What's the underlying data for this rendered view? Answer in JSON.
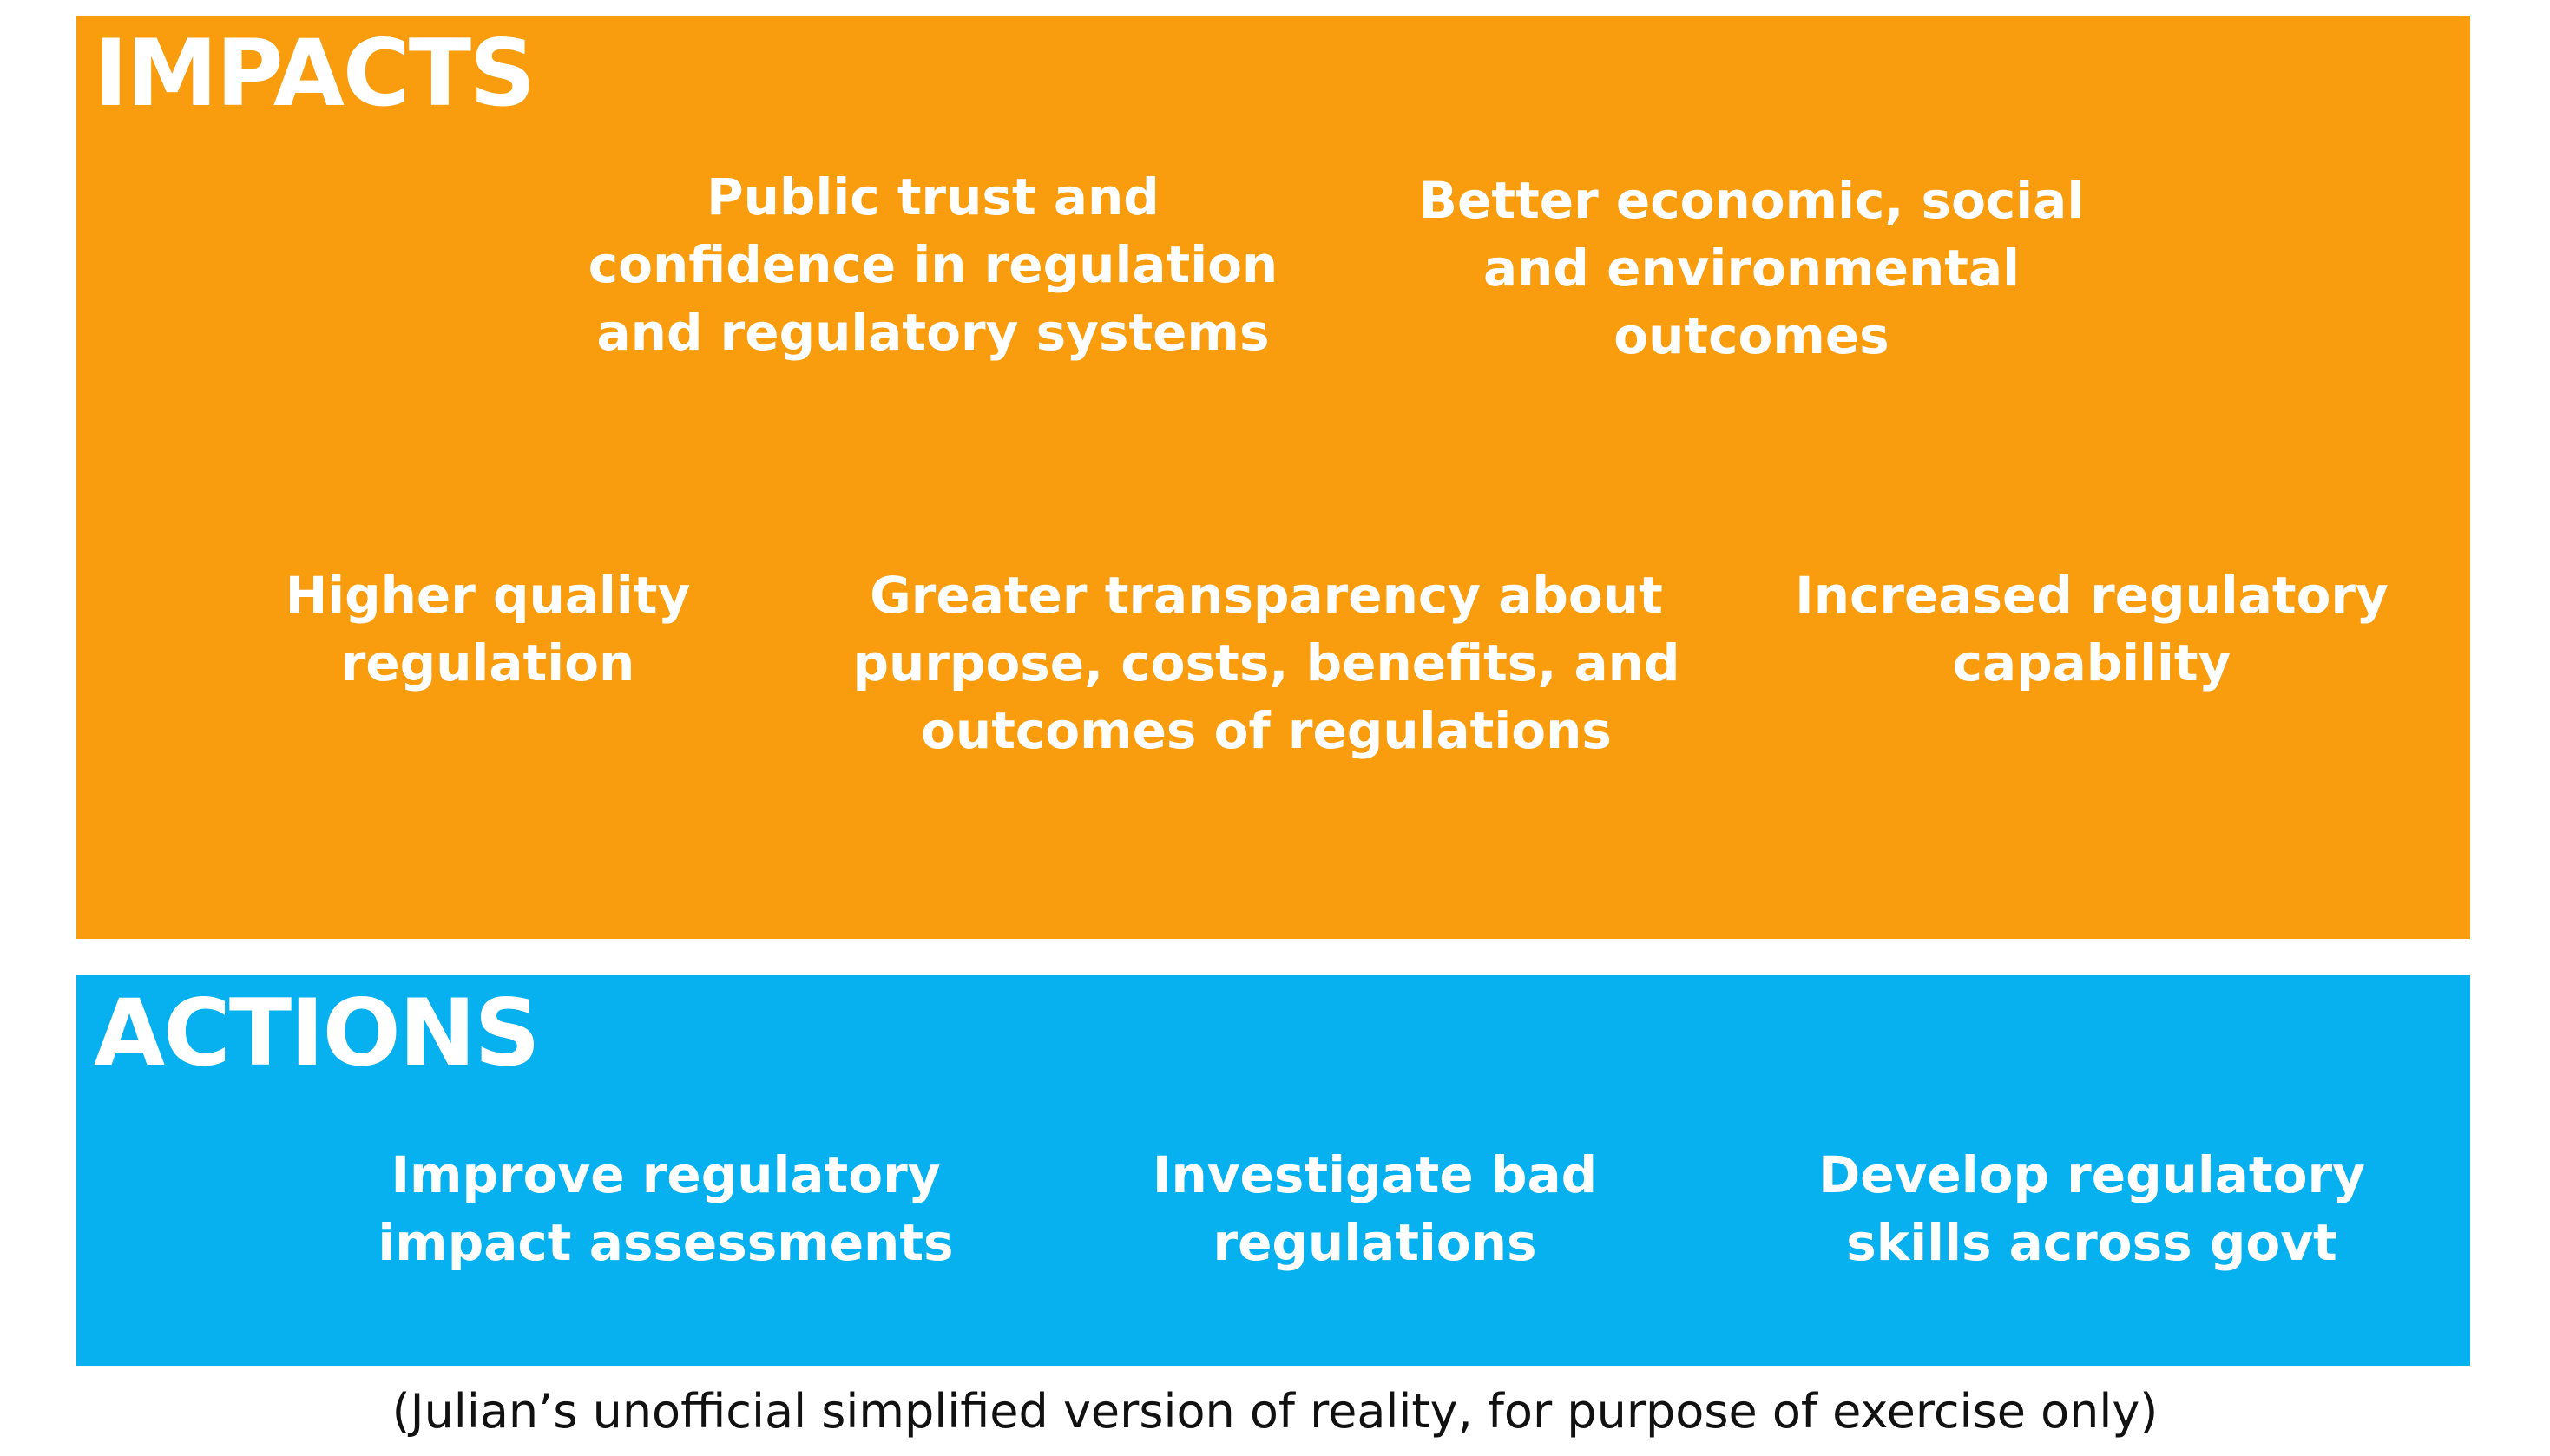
{
  "colors": {
    "impacts_bg": "#f99c0e",
    "actions_bg": "#07b0ee",
    "text_on_panel": "#ffffff",
    "caption_text": "#111111"
  },
  "impacts": {
    "title": "IMPACTS",
    "items": [
      {
        "lines": [
          "Public trust and",
          "confidence in regulation",
          "and regulatory systems"
        ]
      },
      {
        "lines": [
          "Better economic, social",
          "and environmental",
          "outcomes"
        ]
      },
      {
        "lines": [
          "Higher quality",
          "regulation"
        ]
      },
      {
        "lines": [
          "Greater transparency about",
          "purpose, costs, benefits, and",
          "outcomes of regulations"
        ]
      },
      {
        "lines": [
          "Increased regulatory",
          "capability"
        ]
      }
    ]
  },
  "actions": {
    "title": "ACTIONS",
    "items": [
      {
        "lines": [
          "Improve regulatory",
          "impact assessments"
        ]
      },
      {
        "lines": [
          "Investigate bad",
          "regulations"
        ]
      },
      {
        "lines": [
          "Develop regulatory",
          "skills across govt"
        ]
      }
    ]
  },
  "caption": "(Julian’s unofficial simplified version of reality, for purpose of exercise only)"
}
